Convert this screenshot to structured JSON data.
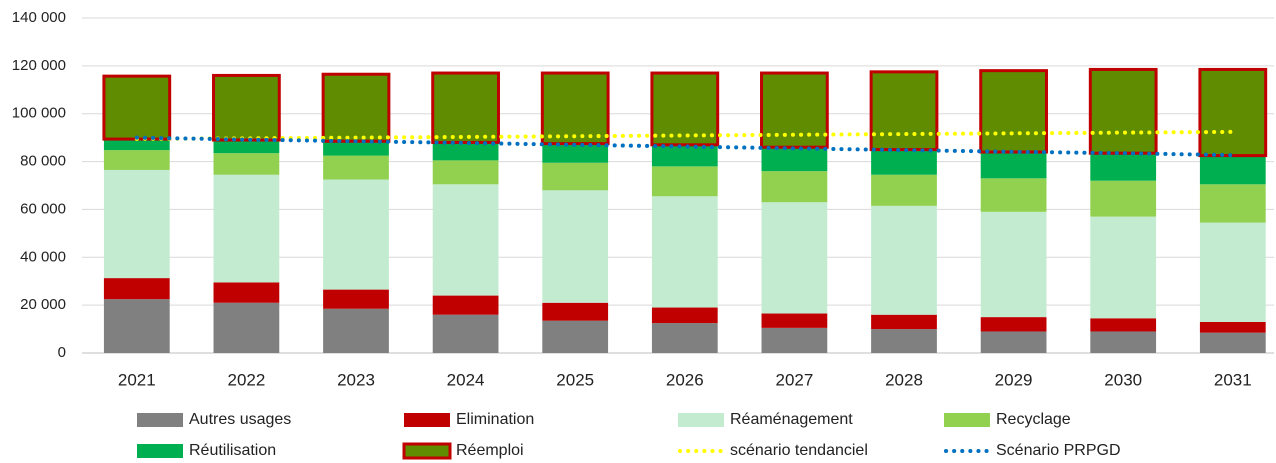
{
  "chart_data": {
    "type": "bar",
    "categories": [
      "2021",
      "2022",
      "2023",
      "2024",
      "2025",
      "2026",
      "2027",
      "2028",
      "2029",
      "2030",
      "2031"
    ],
    "ylim": [
      0,
      140000
    ],
    "yticks": [
      0,
      {
        "value": 20000,
        "label": "20 000"
      },
      {
        "value": 40000,
        "label": "40 000"
      },
      {
        "value": 60000,
        "label": "60 000"
      },
      {
        "value": 80000,
        "label": "80 000"
      },
      {
        "value": 100000,
        "label": "100 000"
      },
      {
        "value": 120000,
        "label": "120 000"
      },
      {
        "value": 140000,
        "label": "140 000"
      }
    ],
    "grid": true,
    "legend": "bottom",
    "series": [
      {
        "name": "Autres usages",
        "type": "bar",
        "color": "#808080",
        "values": [
          22500,
          21000,
          18500,
          16000,
          13500,
          12500,
          10500,
          10000,
          9000,
          9000,
          8500
        ]
      },
      {
        "name": "Elimination",
        "type": "bar",
        "color": "#c00000",
        "values": [
          8800,
          8500,
          8000,
          8000,
          7500,
          6500,
          6000,
          6000,
          6000,
          5500,
          4500
        ]
      },
      {
        "name": "Réaménagement",
        "type": "bar",
        "color": "#c3ebd0",
        "values": [
          45200,
          45000,
          46000,
          46500,
          47000,
          46500,
          46500,
          45500,
          44000,
          42500,
          41500
        ]
      },
      {
        "name": "Recyclage",
        "type": "bar",
        "color": "#92d050",
        "values": [
          8300,
          9000,
          10000,
          10000,
          11500,
          12500,
          13000,
          13000,
          14000,
          15000,
          16000
        ]
      },
      {
        "name": "Réutilisation",
        "type": "bar",
        "color": "#00b050",
        "values": [
          4600,
          5500,
          6000,
          7500,
          8000,
          9000,
          10000,
          10500,
          11000,
          11500,
          12000
        ]
      },
      {
        "name": "Réemploi",
        "type": "bar",
        "color": "#5f8c00",
        "border": "#c00000",
        "values": [
          26300,
          27000,
          28000,
          29000,
          29500,
          30000,
          31000,
          32500,
          34000,
          35000,
          36000
        ]
      },
      {
        "name": "scénario tendanciel",
        "type": "line",
        "color": "#ffff00",
        "values": [
          89500,
          89700,
          90000,
          90300,
          90600,
          90900,
          91200,
          91500,
          91800,
          92100,
          92400
        ]
      },
      {
        "name": "Scénario PRPGD",
        "type": "line",
        "color": "#0070c0",
        "values": [
          90000,
          89200,
          88500,
          87800,
          87000,
          86300,
          85500,
          84800,
          84100,
          83500,
          82700
        ]
      }
    ]
  }
}
